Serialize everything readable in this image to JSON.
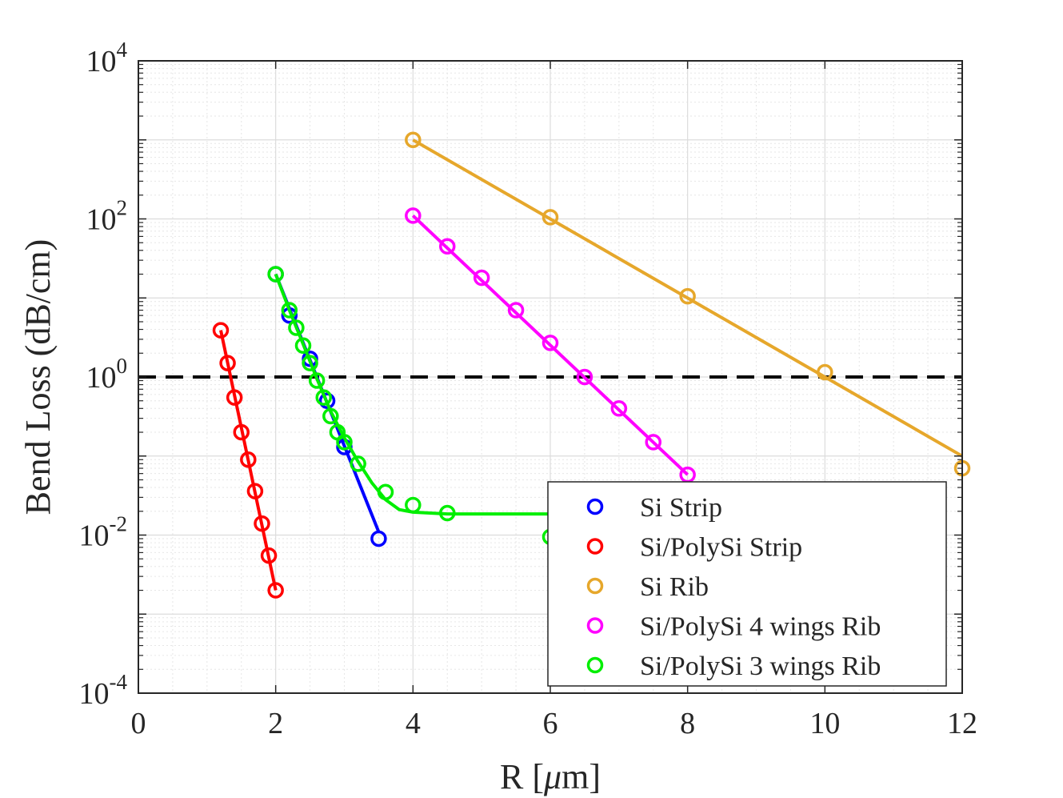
{
  "chart_data": {
    "type": "scatter",
    "title": "",
    "xlabel_prefix": "R [",
    "xlabel_mu": "μ",
    "xlabel_suffix": "m]",
    "ylabel": "Bend Loss (dB/cm)",
    "xlim": [
      0,
      12
    ],
    "ylim": [
      0.0001,
      10000
    ],
    "yscale": "log",
    "grid": true,
    "x_ticks": [
      0,
      2,
      4,
      6,
      8,
      10,
      12
    ],
    "x_tick_labels": [
      "0",
      "2",
      "4",
      "6",
      "8",
      "10",
      "12"
    ],
    "y_ticks": [
      {
        "value": 10000,
        "base": "10",
        "exp": "4"
      },
      {
        "value": 100,
        "base": "10",
        "exp": "2"
      },
      {
        "value": 1,
        "base": "10",
        "exp": "0"
      },
      {
        "value": 0.01,
        "base": "10",
        "exp": "-2"
      },
      {
        "value": 0.0001,
        "base": "10",
        "exp": "-4"
      }
    ],
    "reference_line": {
      "y": 1,
      "style": "dashed",
      "color": "#000000"
    },
    "legend_position": "bottom-right",
    "series": [
      {
        "name": "Si Strip",
        "color": "#0000ff",
        "points": [
          [
            2.0,
            20
          ],
          [
            2.2,
            6
          ],
          [
            2.5,
            1.7
          ],
          [
            2.75,
            0.5
          ],
          [
            3.0,
            0.13
          ],
          [
            3.5,
            0.009
          ]
        ],
        "fit": [
          [
            2.0,
            20
          ],
          [
            3.5,
            0.011
          ]
        ]
      },
      {
        "name": "Si/PolySi Strip",
        "color": "#ff0000",
        "points": [
          [
            1.2,
            3.9
          ],
          [
            1.3,
            1.5
          ],
          [
            1.4,
            0.55
          ],
          [
            1.5,
            0.2
          ],
          [
            1.6,
            0.09
          ],
          [
            1.7,
            0.036
          ],
          [
            1.8,
            0.014
          ],
          [
            1.9,
            0.0055
          ],
          [
            2.0,
            0.002
          ]
        ],
        "fit": [
          [
            1.2,
            3.9
          ],
          [
            2.0,
            0.002
          ]
        ]
      },
      {
        "name": "Si Rib",
        "color": "#e6a72b",
        "points": [
          [
            4,
            1000
          ],
          [
            6,
            105
          ],
          [
            8,
            10.5
          ],
          [
            10,
            1.15
          ],
          [
            12,
            0.07
          ]
        ],
        "fit": [
          [
            4,
            1000
          ],
          [
            12,
            0.1
          ]
        ]
      },
      {
        "name": "Si/PolySi 4 wings Rib",
        "color": "#ff00ff",
        "points": [
          [
            4,
            110
          ],
          [
            4.5,
            45
          ],
          [
            5,
            18
          ],
          [
            5.5,
            7
          ],
          [
            6,
            2.7
          ],
          [
            6.5,
            1.0
          ],
          [
            7,
            0.4
          ],
          [
            7.5,
            0.15
          ],
          [
            8,
            0.058
          ]
        ],
        "fit": [
          [
            4,
            110
          ],
          [
            8,
            0.058
          ]
        ]
      },
      {
        "name": "Si/PolySi 3 wings Rib",
        "color": "#00ee00",
        "points": [
          [
            2.0,
            20
          ],
          [
            2.2,
            7
          ],
          [
            2.3,
            4.2
          ],
          [
            2.4,
            2.5
          ],
          [
            2.5,
            1.5
          ],
          [
            2.6,
            0.9
          ],
          [
            2.7,
            0.55
          ],
          [
            2.8,
            0.32
          ],
          [
            2.9,
            0.2
          ],
          [
            3.0,
            0.15
          ],
          [
            3.2,
            0.08
          ],
          [
            3.6,
            0.035
          ],
          [
            4.0,
            0.024
          ],
          [
            4.5,
            0.019
          ],
          [
            6.0,
            0.0095
          ]
        ],
        "fit": [
          [
            2.0,
            20
          ],
          [
            2.2,
            7
          ],
          [
            2.4,
            2.6
          ],
          [
            2.6,
            0.95
          ],
          [
            2.8,
            0.37
          ],
          [
            3.0,
            0.17
          ],
          [
            3.2,
            0.085
          ],
          [
            3.4,
            0.046
          ],
          [
            3.6,
            0.028
          ],
          [
            3.8,
            0.021
          ],
          [
            4.0,
            0.0195
          ],
          [
            4.5,
            0.0185
          ],
          [
            5.0,
            0.0185
          ],
          [
            6.0,
            0.0185
          ]
        ]
      }
    ]
  }
}
